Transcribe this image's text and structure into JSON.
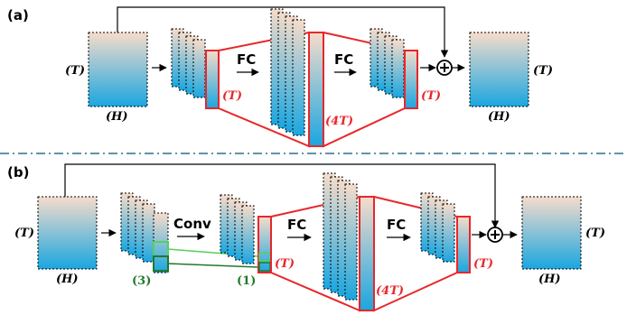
{
  "panel_a": {
    "label": "(a)",
    "fc1": "FC",
    "fc2": "FC",
    "input_left_dim": "(T)",
    "input_bottom_dim": "(H)",
    "output_right_dim": "(T)",
    "output_bottom_dim": "(H)",
    "first_fc_in_dim": "(T)",
    "hidden_dim": "(4T)",
    "second_fc_out_dim": "(T)",
    "add_symbol": "⊕"
  },
  "panel_b": {
    "label": "(b)",
    "conv": "Conv",
    "fc1": "FC",
    "fc2": "FC",
    "input_left_dim": "(T)",
    "input_bottom_dim": "(H)",
    "output_right_dim": "(T)",
    "output_bottom_dim": "(H)",
    "kernel_in": "(3)",
    "kernel_out": "(1)",
    "first_fc_in_dim": "(T)",
    "hidden_dim": "(4T)",
    "second_fc_out_dim": "(T)",
    "add_symbol": "⊕"
  },
  "colors": {
    "highlight_red": "#e8262a",
    "kernel_light_green": "#55d05a",
    "kernel_dark_green": "#1f7a2a",
    "separator": "#2f6f8f",
    "gradient_top": "#f6dccb",
    "gradient_bottom": "#1aa6df"
  }
}
